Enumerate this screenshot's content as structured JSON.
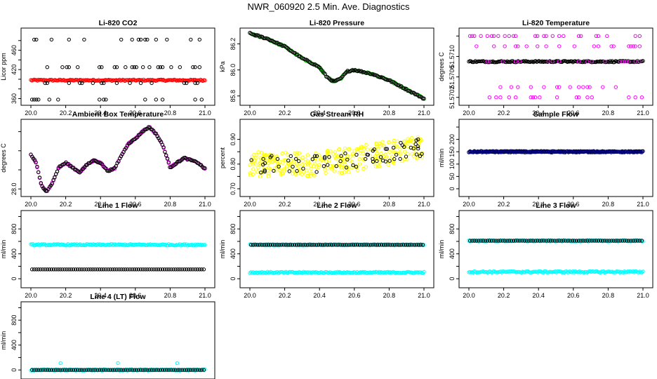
{
  "page": {
    "title": "NWR_060920  2.5 Min. Ave. Diagnostics"
  },
  "colors": {
    "black": "#000000",
    "red": "#ff0000",
    "green": "#00cc00",
    "magenta": "#ff00ff",
    "yellow": "#ffff00",
    "navy": "#000080",
    "cyan": "#00ffff"
  },
  "chart_data": [
    {
      "type": "scatter",
      "title": "Li-820 CO2",
      "ylabel": "Licor ppm",
      "xlim": [
        20.0,
        21.0
      ],
      "ylim": [
        352,
        500
      ],
      "yticks": [
        360,
        380,
        400,
        420,
        440,
        460,
        480
      ],
      "ytick_labels": [
        "360",
        "",
        "",
        "420",
        "",
        "460",
        ""
      ],
      "xticks": [
        20.0,
        20.2,
        20.4,
        20.6,
        20.8,
        21.0
      ],
      "series": [
        {
          "name": "sample",
          "color": "red",
          "style": "dense",
          "levels": [
            398
          ]
        },
        {
          "name": "standards",
          "color": "black",
          "style": "discrete",
          "levels": [
            358,
            392,
            425,
            482
          ]
        }
      ]
    },
    {
      "type": "scatter",
      "title": "Li-820 Pressure",
      "ylabel": "kPa",
      "xlim": [
        20.0,
        21.0
      ],
      "ylim": [
        85.75,
        86.3
      ],
      "yticks": [
        85.8,
        86.0,
        86.2
      ],
      "ytick_labels": [
        "85.8",
        "86.0",
        "86.2"
      ],
      "xticks": [
        20.0,
        20.2,
        20.4,
        20.6,
        20.8,
        21.0
      ],
      "series": [
        {
          "name": "pressure",
          "color": "green",
          "style": "curve",
          "points": [
            [
              20.0,
              86.28
            ],
            [
              20.1,
              86.24
            ],
            [
              20.2,
              86.18
            ],
            [
              20.3,
              86.09
            ],
            [
              20.36,
              86.05
            ],
            [
              20.4,
              86.02
            ],
            [
              20.44,
              85.95
            ],
            [
              20.48,
              85.91
            ],
            [
              20.52,
              85.93
            ],
            [
              20.56,
              85.99
            ],
            [
              20.6,
              86.0
            ],
            [
              20.7,
              85.97
            ],
            [
              20.8,
              85.92
            ],
            [
              20.9,
              85.85
            ],
            [
              21.0,
              85.78
            ]
          ]
        },
        {
          "name": "pressure-black",
          "color": "black",
          "style": "curve",
          "points": [
            [
              20.0,
              86.28
            ],
            [
              20.1,
              86.24
            ],
            [
              20.2,
              86.18
            ],
            [
              20.3,
              86.09
            ],
            [
              20.36,
              86.05
            ],
            [
              20.4,
              86.02
            ],
            [
              20.44,
              85.95
            ],
            [
              20.48,
              85.91
            ],
            [
              20.52,
              85.93
            ],
            [
              20.56,
              85.99
            ],
            [
              20.6,
              86.0
            ],
            [
              20.7,
              85.97
            ],
            [
              20.8,
              85.92
            ],
            [
              20.9,
              85.85
            ],
            [
              21.0,
              85.78
            ]
          ]
        }
      ]
    },
    {
      "type": "scatter",
      "title": "Li-820 Temperature",
      "ylabel": "degrees C",
      "xlim": [
        20.0,
        21.0
      ],
      "ylim": [
        51.5701,
        51.5715
      ],
      "yticks": [
        51.5702,
        51.5706,
        51.571,
        51.5714
      ],
      "ytick_labels": [
        "51.5702",
        "51.5706",
        "51.5710",
        ""
      ],
      "xticks": [
        20.0,
        20.2,
        20.4,
        20.6,
        20.8,
        21.0
      ],
      "series": [
        {
          "name": "temp-main",
          "color": "black",
          "style": "dense",
          "levels": [
            51.5709
          ]
        },
        {
          "name": "temp-magenta",
          "color": "magenta",
          "style": "discrete",
          "levels": [
            51.5702,
            51.5704,
            51.5709,
            51.5712,
            51.5714
          ]
        }
      ]
    },
    {
      "type": "scatter",
      "title": "Ambient Box Temperature",
      "ylabel": "degrees C",
      "xlim": [
        20.0,
        21.0
      ],
      "ylim": [
        27.9,
        29.4
      ],
      "yticks": [
        28.0,
        28.4,
        28.8,
        29.2
      ],
      "ytick_labels": [
        "28.0",
        "",
        "",
        ""
      ],
      "xticks": [
        20.0,
        20.2,
        20.4,
        20.6,
        20.8,
        21.0
      ],
      "series": [
        {
          "name": "box-temp",
          "color": "magenta",
          "style": "curve",
          "points": [
            [
              20.0,
              28.72
            ],
            [
              20.03,
              28.55
            ],
            [
              20.06,
              28.08
            ],
            [
              20.09,
              27.95
            ],
            [
              20.12,
              28.1
            ],
            [
              20.16,
              28.45
            ],
            [
              20.2,
              28.55
            ],
            [
              20.24,
              28.45
            ],
            [
              20.28,
              28.35
            ],
            [
              20.32,
              28.5
            ],
            [
              20.36,
              28.6
            ],
            [
              20.4,
              28.55
            ],
            [
              20.44,
              28.38
            ],
            [
              20.48,
              28.42
            ],
            [
              20.52,
              28.7
            ],
            [
              20.56,
              28.95
            ],
            [
              20.6,
              29.05
            ],
            [
              20.64,
              29.2
            ],
            [
              20.68,
              29.3
            ],
            [
              20.72,
              29.15
            ],
            [
              20.76,
              28.9
            ],
            [
              20.8,
              28.45
            ],
            [
              20.84,
              28.55
            ],
            [
              20.88,
              28.65
            ],
            [
              20.92,
              28.6
            ],
            [
              20.96,
              28.55
            ],
            [
              21.0,
              28.42
            ]
          ]
        },
        {
          "name": "box-temp-black",
          "color": "black",
          "style": "curve",
          "points": [
            [
              20.0,
              28.72
            ],
            [
              20.03,
              28.55
            ],
            [
              20.06,
              28.08
            ],
            [
              20.09,
              27.95
            ],
            [
              20.12,
              28.1
            ],
            [
              20.16,
              28.45
            ],
            [
              20.2,
              28.55
            ],
            [
              20.24,
              28.45
            ],
            [
              20.28,
              28.35
            ],
            [
              20.32,
              28.5
            ],
            [
              20.36,
              28.6
            ],
            [
              20.4,
              28.55
            ],
            [
              20.44,
              28.38
            ],
            [
              20.48,
              28.42
            ],
            [
              20.52,
              28.7
            ],
            [
              20.56,
              28.95
            ],
            [
              20.6,
              29.05
            ],
            [
              20.64,
              29.2
            ],
            [
              20.68,
              29.3
            ],
            [
              20.72,
              29.15
            ],
            [
              20.76,
              28.9
            ],
            [
              20.8,
              28.45
            ],
            [
              20.84,
              28.55
            ],
            [
              20.88,
              28.65
            ],
            [
              20.92,
              28.6
            ],
            [
              20.96,
              28.55
            ],
            [
              21.0,
              28.42
            ]
          ]
        }
      ]
    },
    {
      "type": "scatter",
      "title": "Gas Stream RH",
      "ylabel": "percent",
      "xlim": [
        20.0,
        21.0
      ],
      "ylim": [
        0.68,
        0.97
      ],
      "yticks": [
        0.7,
        0.75,
        0.8,
        0.85,
        0.9
      ],
      "ytick_labels": [
        "0.70",
        "",
        "0.80",
        "",
        "0.90"
      ],
      "xticks": [
        20.0,
        20.2,
        20.4,
        20.6,
        20.8,
        21.0
      ],
      "series": [
        {
          "name": "rh-yellow",
          "color": "yellow",
          "style": "noisy",
          "trend": [
            [
              20.0,
              0.8
            ],
            [
              20.4,
              0.8
            ],
            [
              20.6,
              0.82
            ],
            [
              21.0,
              0.87
            ]
          ],
          "spread": 0.05
        },
        {
          "name": "rh-black",
          "color": "black",
          "style": "noisy",
          "trend": [
            [
              20.0,
              0.8
            ],
            [
              20.4,
              0.8
            ],
            [
              20.6,
              0.82
            ],
            [
              21.0,
              0.87
            ]
          ],
          "spread": 0.035
        }
      ]
    },
    {
      "type": "scatter",
      "title": "Sample Flow",
      "ylabel": "ml/min",
      "xlim": [
        20.0,
        21.0
      ],
      "ylim": [
        -20,
        270
      ],
      "yticks": [
        0,
        50,
        100,
        150,
        200,
        250
      ],
      "ytick_labels": [
        "0",
        "50",
        "100",
        "150",
        "200",
        ""
      ],
      "xticks": [
        20.0,
        20.2,
        20.4,
        20.6,
        20.8,
        21.0
      ],
      "series": [
        {
          "name": "sample-flow-black",
          "color": "black",
          "style": "dense",
          "levels": [
            150
          ]
        },
        {
          "name": "sample-flow",
          "color": "navy",
          "style": "dense",
          "levels": [
            150
          ]
        }
      ]
    },
    {
      "type": "scatter",
      "title": "Line 1 Flow",
      "ylabel": "ml/min",
      "xlim": [
        20.0,
        21.0
      ],
      "ylim": [
        -100,
        1050
      ],
      "yticks": [
        0,
        200,
        400,
        600,
        800,
        1000
      ],
      "ytick_labels": [
        "0",
        "",
        "400",
        "",
        "800",
        ""
      ],
      "xticks": [
        20.0,
        20.2,
        20.4,
        20.6,
        20.8,
        21.0
      ],
      "series": [
        {
          "name": "line1-cyan",
          "color": "cyan",
          "style": "dense",
          "levels": [
            545
          ]
        },
        {
          "name": "line1-black",
          "color": "black",
          "style": "discrete",
          "levels": [
            150
          ]
        }
      ]
    },
    {
      "type": "scatter",
      "title": "Line 2 Flow",
      "ylabel": "ml/min",
      "xlim": [
        20.0,
        21.0
      ],
      "ylim": [
        -100,
        1050
      ],
      "yticks": [
        0,
        200,
        400,
        600,
        800,
        1000
      ],
      "ytick_labels": [
        "0",
        "",
        "400",
        "",
        "800",
        ""
      ],
      "xticks": [
        20.0,
        20.2,
        20.4,
        20.6,
        20.8,
        21.0
      ],
      "series": [
        {
          "name": "line2-cyan",
          "color": "cyan",
          "style": "dense",
          "levels": [
            100,
            545
          ]
        },
        {
          "name": "line2-black",
          "color": "black",
          "style": "discrete",
          "levels": [
            545
          ]
        }
      ]
    },
    {
      "type": "scatter",
      "title": "Line 3 Flow",
      "ylabel": "ml/min",
      "xlim": [
        20.0,
        21.0
      ],
      "ylim": [
        -100,
        1050
      ],
      "yticks": [
        0,
        200,
        400,
        600,
        800,
        1000
      ],
      "ytick_labels": [
        "0",
        "",
        "400",
        "",
        "800",
        ""
      ],
      "xticks": [
        20.0,
        20.2,
        20.4,
        20.6,
        20.8,
        21.0
      ],
      "series": [
        {
          "name": "line3-cyan",
          "color": "cyan",
          "style": "dense",
          "levels": [
            110,
            610
          ]
        },
        {
          "name": "line3-black",
          "color": "black",
          "style": "discrete",
          "levels": [
            610
          ]
        }
      ]
    },
    {
      "type": "scatter",
      "title": "Line 4 (LT) Flow",
      "ylabel": "ml/min",
      "xlim": [
        20.0,
        21.0
      ],
      "ylim": [
        -100,
        1050
      ],
      "yticks": [
        0,
        200,
        400,
        600,
        800,
        1000
      ],
      "ytick_labels": [
        "0",
        "",
        "400",
        "",
        "800",
        ""
      ],
      "xticks": [
        20.0,
        20.2,
        20.4,
        20.6,
        20.8,
        21.0
      ],
      "series": [
        {
          "name": "line4-cyan",
          "color": "cyan",
          "style": "dense",
          "levels": [
            0
          ]
        },
        {
          "name": "line4-black",
          "color": "black",
          "style": "discrete",
          "levels": [
            0
          ]
        },
        {
          "name": "line4-spikes",
          "color": "cyan",
          "style": "points",
          "points": [
            [
              20.17,
              110
            ],
            [
              20.5,
              110
            ],
            [
              20.84,
              110
            ]
          ]
        }
      ]
    }
  ]
}
